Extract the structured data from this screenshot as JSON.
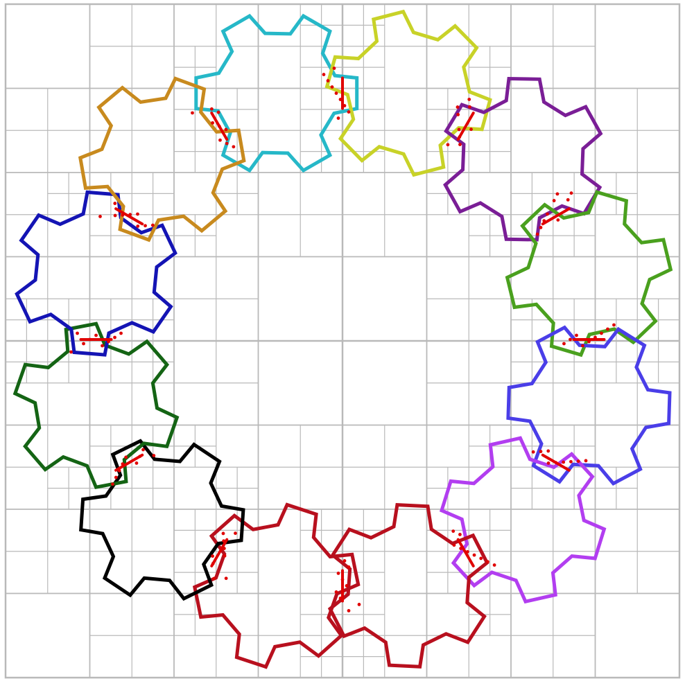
{
  "colors": {
    "background": "#ffffff",
    "grid": "#b9b9b9",
    "contact": "#e00000"
  },
  "gear_count": 12,
  "gears": [
    {
      "id": "cyan",
      "color": "#26b8c8"
    },
    {
      "id": "yellow",
      "color": "#c8d228"
    },
    {
      "id": "purple",
      "color": "#7a1e96"
    },
    {
      "id": "green",
      "color": "#4aa01e"
    },
    {
      "id": "blue-violet",
      "color": "#4a3ee8"
    },
    {
      "id": "light-purple",
      "color": "#b23ef0"
    },
    {
      "id": "red-right",
      "color": "#b8101e"
    },
    {
      "id": "red-left",
      "color": "#b8101e"
    },
    {
      "id": "black",
      "color": "#000000"
    },
    {
      "id": "dark-green",
      "color": "#146414"
    },
    {
      "id": "navy",
      "color": "#1414b4"
    },
    {
      "id": "orange",
      "color": "#c88a1e"
    }
  ]
}
